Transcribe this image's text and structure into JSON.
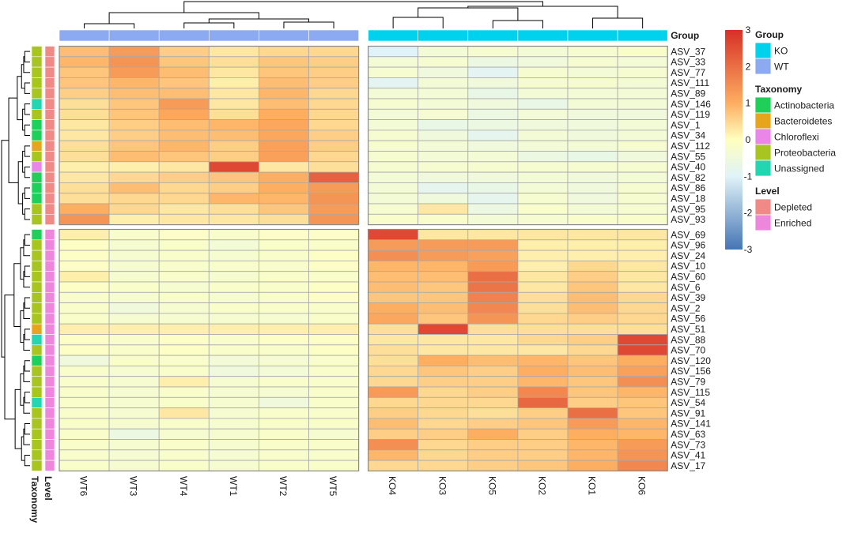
{
  "chart_data": {
    "type": "heatmap",
    "title": "",
    "columns": [
      "WT6",
      "WT3",
      "WT4",
      "WT1",
      "WT2",
      "WT5",
      "KO4",
      "KO3",
      "KO5",
      "KO2",
      "KO1",
      "KO6"
    ],
    "column_groups": [
      "WT",
      "WT",
      "WT",
      "WT",
      "WT",
      "WT",
      "KO",
      "KO",
      "KO",
      "KO",
      "KO",
      "KO"
    ],
    "rows": [
      {
        "name": "ASV_37",
        "taxonomy": "Proteobacteria",
        "level": "Depleted",
        "values": [
          0.8,
          1.3,
          0.6,
          0.3,
          0.5,
          0.5,
          -1.0,
          -0.4,
          -0.3,
          -0.4,
          -0.3,
          -0.2
        ]
      },
      {
        "name": "ASV_33",
        "taxonomy": "Proteobacteria",
        "level": "Depleted",
        "values": [
          0.9,
          1.4,
          0.7,
          0.4,
          0.7,
          0.6,
          -0.4,
          -0.3,
          -0.6,
          -0.5,
          -0.3,
          -0.4
        ]
      },
      {
        "name": "ASV_77",
        "taxonomy": "Proteobacteria",
        "level": "Depleted",
        "values": [
          0.7,
          1.3,
          0.8,
          0.3,
          0.7,
          0.6,
          -0.3,
          -0.5,
          -0.9,
          -0.3,
          -0.4,
          -0.3
        ]
      },
      {
        "name": "ASV_111",
        "taxonomy": "Proteobacteria",
        "level": "Depleted",
        "values": [
          0.7,
          0.9,
          0.7,
          0.2,
          0.8,
          0.6,
          -0.9,
          -0.4,
          -0.5,
          -0.3,
          -0.3,
          -0.4
        ]
      },
      {
        "name": "ASV_89",
        "taxonomy": "Proteobacteria",
        "level": "Depleted",
        "values": [
          0.6,
          0.8,
          0.8,
          0.3,
          0.9,
          0.5,
          -0.4,
          -0.4,
          -0.7,
          -0.4,
          -0.4,
          -0.4
        ]
      },
      {
        "name": "ASV_146",
        "taxonomy": "Unassigned",
        "level": "Depleted",
        "values": [
          0.4,
          0.7,
          1.3,
          0.3,
          0.8,
          0.5,
          -0.3,
          -0.4,
          -0.5,
          -0.7,
          -0.4,
          -0.4
        ]
      },
      {
        "name": "ASV_119",
        "taxonomy": "Proteobacteria",
        "level": "Depleted",
        "values": [
          0.4,
          0.7,
          1.1,
          0.4,
          1.0,
          0.5,
          -0.4,
          -0.3,
          -0.6,
          -0.4,
          -0.5,
          -0.5
        ]
      },
      {
        "name": "ASV_1",
        "taxonomy": "Actinobacteria",
        "level": "Depleted",
        "values": [
          0.3,
          0.6,
          0.8,
          0.9,
          1.1,
          0.5,
          -0.4,
          -0.7,
          -0.6,
          -0.5,
          -0.5,
          -0.4
        ]
      },
      {
        "name": "ASV_34",
        "taxonomy": "Actinobacteria",
        "level": "Depleted",
        "values": [
          0.3,
          0.6,
          0.8,
          0.8,
          1.1,
          0.6,
          -0.3,
          -0.5,
          -0.8,
          -0.4,
          -0.5,
          -0.4
        ]
      },
      {
        "name": "ASV_112",
        "taxonomy": "Bacteroidetes",
        "level": "Depleted",
        "values": [
          0.4,
          0.7,
          0.9,
          0.6,
          1.2,
          0.6,
          -0.3,
          -0.4,
          -0.5,
          -0.4,
          -0.4,
          -0.3
        ]
      },
      {
        "name": "ASV_55",
        "taxonomy": "Proteobacteria",
        "level": "Depleted",
        "values": [
          0.4,
          0.8,
          0.7,
          0.6,
          1.2,
          0.5,
          -0.3,
          -0.4,
          -0.4,
          -0.6,
          -0.7,
          -0.5
        ]
      },
      {
        "name": "ASV_40",
        "taxonomy": "Chloroflexi",
        "level": "Depleted",
        "values": [
          0.2,
          0.2,
          0.3,
          2.6,
          0.3,
          0.4,
          -0.3,
          -0.3,
          -0.3,
          -0.3,
          -0.3,
          -0.3
        ]
      },
      {
        "name": "ASV_82",
        "taxonomy": "Actinobacteria",
        "level": "Depleted",
        "values": [
          0.3,
          0.5,
          0.6,
          0.7,
          1.0,
          2.2,
          -0.4,
          -0.5,
          -0.5,
          -0.4,
          -0.5,
          -0.4
        ]
      },
      {
        "name": "ASV_86",
        "taxonomy": "Actinobacteria",
        "level": "Depleted",
        "values": [
          0.4,
          0.8,
          0.5,
          0.6,
          1.0,
          1.3,
          -0.4,
          -0.8,
          -0.7,
          -0.4,
          -0.5,
          -0.3
        ]
      },
      {
        "name": "ASV_18",
        "taxonomy": "Actinobacteria",
        "level": "Depleted",
        "values": [
          0.4,
          0.5,
          0.5,
          0.9,
          0.9,
          1.4,
          -0.4,
          -0.5,
          -0.8,
          -0.3,
          -0.5,
          -0.3
        ]
      },
      {
        "name": "ASV_95",
        "taxonomy": "Proteobacteria",
        "level": "Depleted",
        "values": [
          1.0,
          0.5,
          0.3,
          0.4,
          0.7,
          1.3,
          -0.3,
          0.3,
          -0.6,
          -0.2,
          -0.4,
          -0.3
        ]
      },
      {
        "name": "ASV_93",
        "taxonomy": "Proteobacteria",
        "level": "Depleted",
        "values": [
          1.4,
          0.2,
          0.3,
          0.3,
          0.4,
          1.4,
          -0.2,
          -0.2,
          -0.4,
          -0.3,
          -0.2,
          -0.2
        ]
      },
      {
        "name": "ASV_69",
        "taxonomy": "Actinobacteria",
        "level": "Enriched",
        "values": [
          0.2,
          -0.2,
          -0.1,
          -0.2,
          -0.1,
          -0.1,
          2.6,
          0.3,
          0.3,
          0.3,
          0.3,
          0.3
        ]
      },
      {
        "name": "ASV_96",
        "taxonomy": "Proteobacteria",
        "level": "Enriched",
        "values": [
          -0.1,
          -0.3,
          -0.2,
          -0.4,
          -0.2,
          -0.2,
          1.3,
          1.3,
          1.3,
          0.2,
          0.2,
          0.2
        ]
      },
      {
        "name": "ASV_24",
        "taxonomy": "Proteobacteria",
        "level": "Enriched",
        "values": [
          -0.1,
          -0.3,
          -0.2,
          -0.3,
          -0.2,
          -0.1,
          1.5,
          1.3,
          1.2,
          0.2,
          0.2,
          0.2
        ]
      },
      {
        "name": "ASV_10",
        "taxonomy": "Proteobacteria",
        "level": "Enriched",
        "values": [
          -0.1,
          -0.3,
          -0.2,
          -0.2,
          -0.2,
          -0.1,
          0.9,
          0.9,
          1.3,
          0.2,
          0.5,
          0.3
        ]
      },
      {
        "name": "ASV_60",
        "taxonomy": "Proteobacteria",
        "level": "Enriched",
        "values": [
          0.2,
          -0.3,
          -0.2,
          -0.3,
          -0.2,
          -0.2,
          0.8,
          0.8,
          2.0,
          0.3,
          0.6,
          0.3
        ]
      },
      {
        "name": "ASV_6",
        "taxonomy": "Proteobacteria",
        "level": "Enriched",
        "values": [
          -0.1,
          -0.2,
          -0.3,
          -0.2,
          -0.2,
          -0.1,
          0.8,
          0.7,
          1.9,
          0.3,
          0.7,
          0.3
        ]
      },
      {
        "name": "ASV_39",
        "taxonomy": "Proteobacteria",
        "level": "Enriched",
        "values": [
          -0.2,
          -0.3,
          -0.2,
          -0.3,
          -0.2,
          -0.1,
          0.7,
          0.7,
          1.7,
          0.4,
          0.8,
          0.5
        ]
      },
      {
        "name": "ASV_2",
        "taxonomy": "Proteobacteria",
        "level": "Enriched",
        "values": [
          -0.2,
          -0.5,
          -0.3,
          -0.2,
          -0.2,
          -0.2,
          1.0,
          0.8,
          1.6,
          0.4,
          0.8,
          0.5
        ]
      },
      {
        "name": "ASV_56",
        "taxonomy": "Proteobacteria",
        "level": "Enriched",
        "values": [
          -0.2,
          -0.3,
          -0.3,
          -0.3,
          -0.3,
          -0.2,
          1.1,
          0.7,
          1.4,
          0.5,
          0.6,
          0.5
        ]
      },
      {
        "name": "ASV_51",
        "taxonomy": "Bacteroidetes",
        "level": "Enriched",
        "values": [
          0.2,
          0.2,
          0.2,
          0.2,
          0.2,
          0.2,
          0.4,
          2.6,
          0.4,
          0.4,
          0.4,
          0.4
        ]
      },
      {
        "name": "ASV_88",
        "taxonomy": "Unassigned",
        "level": "Enriched",
        "values": [
          -0.1,
          -0.2,
          -0.1,
          -0.2,
          -0.1,
          -0.1,
          0.3,
          0.3,
          0.3,
          0.5,
          0.6,
          2.6
        ]
      },
      {
        "name": "ASV_70",
        "taxonomy": "Proteobacteria",
        "level": "Enriched",
        "values": [
          -0.1,
          -0.2,
          -0.1,
          -0.2,
          -0.2,
          -0.1,
          0.4,
          0.3,
          0.3,
          0.3,
          0.5,
          2.6
        ]
      },
      {
        "name": "ASV_120",
        "taxonomy": "Actinobacteria",
        "level": "Enriched",
        "values": [
          -0.5,
          -0.2,
          -0.2,
          -0.4,
          -0.3,
          -0.2,
          0.4,
          1.0,
          0.8,
          0.9,
          0.7,
          1.0
        ]
      },
      {
        "name": "ASV_156",
        "taxonomy": "Proteobacteria",
        "level": "Enriched",
        "values": [
          -0.2,
          -0.3,
          -0.2,
          -0.5,
          -0.4,
          -0.2,
          0.5,
          0.7,
          0.6,
          1.0,
          0.8,
          1.2
        ]
      },
      {
        "name": "ASV_79",
        "taxonomy": "Proteobacteria",
        "level": "Enriched",
        "values": [
          -0.2,
          -0.3,
          0.2,
          -0.3,
          -0.2,
          -0.2,
          0.5,
          0.6,
          0.6,
          0.9,
          0.7,
          1.5
        ]
      },
      {
        "name": "ASV_115",
        "taxonomy": "Proteobacteria",
        "level": "Enriched",
        "values": [
          -0.2,
          -0.3,
          -0.2,
          -0.3,
          -0.3,
          -0.2,
          1.3,
          0.5,
          0.6,
          1.6,
          0.7,
          0.9
        ]
      },
      {
        "name": "ASV_54",
        "taxonomy": "Unassigned",
        "level": "Enriched",
        "values": [
          -0.2,
          -0.3,
          -0.2,
          -0.3,
          -0.5,
          -0.2,
          0.5,
          0.5,
          0.5,
          2.1,
          0.6,
          0.7
        ]
      },
      {
        "name": "ASV_91",
        "taxonomy": "Proteobacteria",
        "level": "Enriched",
        "values": [
          -0.2,
          -0.3,
          0.3,
          -0.3,
          -0.2,
          -0.2,
          0.6,
          0.5,
          0.4,
          0.6,
          2.0,
          0.7
        ]
      },
      {
        "name": "ASV_141",
        "taxonomy": "Proteobacteria",
        "level": "Enriched",
        "values": [
          -0.2,
          -0.3,
          -0.2,
          -0.3,
          -0.2,
          -0.2,
          0.8,
          0.5,
          0.6,
          0.7,
          1.3,
          0.9
        ]
      },
      {
        "name": "ASV_63",
        "taxonomy": "Proteobacteria",
        "level": "Enriched",
        "values": [
          -0.2,
          -0.6,
          -0.3,
          -0.3,
          -0.2,
          -0.3,
          0.6,
          0.6,
          1.0,
          0.6,
          1.0,
          0.9
        ]
      },
      {
        "name": "ASV_73",
        "taxonomy": "Proteobacteria",
        "level": "Enriched",
        "values": [
          -0.2,
          -0.3,
          -0.2,
          -0.3,
          -0.2,
          -0.2,
          1.5,
          0.5,
          0.6,
          0.6,
          0.9,
          1.3
        ]
      },
      {
        "name": "ASV_41",
        "taxonomy": "Proteobacteria",
        "level": "Enriched",
        "values": [
          -0.2,
          -0.3,
          -0.2,
          -0.3,
          -0.2,
          -0.2,
          0.9,
          0.5,
          0.6,
          0.6,
          0.9,
          1.4
        ]
      },
      {
        "name": "ASV_17",
        "taxonomy": "Proteobacteria",
        "level": "Enriched",
        "values": [
          -0.2,
          -0.3,
          -0.2,
          -0.3,
          -0.2,
          -0.2,
          0.5,
          0.5,
          0.6,
          0.7,
          1.0,
          1.6
        ]
      }
    ],
    "color_scale": {
      "min": -3,
      "max": 3,
      "ticks": [
        "3",
        "2",
        "1",
        "0",
        "-1",
        "-2",
        "-3"
      ],
      "stops": [
        {
          "value": -3,
          "color": "#4575b4"
        },
        {
          "value": -1,
          "color": "#e0f3f8"
        },
        {
          "value": 0,
          "color": "#ffffbf"
        },
        {
          "value": 1,
          "color": "#fdae61"
        },
        {
          "value": 3,
          "color": "#d73027"
        }
      ]
    },
    "annotation_titles": {
      "group": "Group",
      "taxonomy": "Taxonomy",
      "level": "Level"
    },
    "legend": {
      "group": {
        "title": "Group",
        "items": [
          {
            "label": "KO",
            "color": "#00d2ee"
          },
          {
            "label": "WT",
            "color": "#8caaf2"
          }
        ]
      },
      "taxonomy": {
        "title": "Taxonomy",
        "items": [
          {
            "label": "Actinobacteria",
            "color": "#1ecf5a"
          },
          {
            "label": "Bacteroidetes",
            "color": "#e7a51c"
          },
          {
            "label": "Chloroflexi",
            "color": "#e986e8"
          },
          {
            "label": "Proteobacteria",
            "color": "#a8c420"
          },
          {
            "label": "Unassigned",
            "color": "#22d6b2"
          }
        ]
      },
      "level": {
        "title": "Level",
        "items": [
          {
            "label": "Depleted",
            "color": "#f08a86"
          },
          {
            "label": "Enriched",
            "color": "#ee86dc"
          }
        ]
      }
    }
  }
}
